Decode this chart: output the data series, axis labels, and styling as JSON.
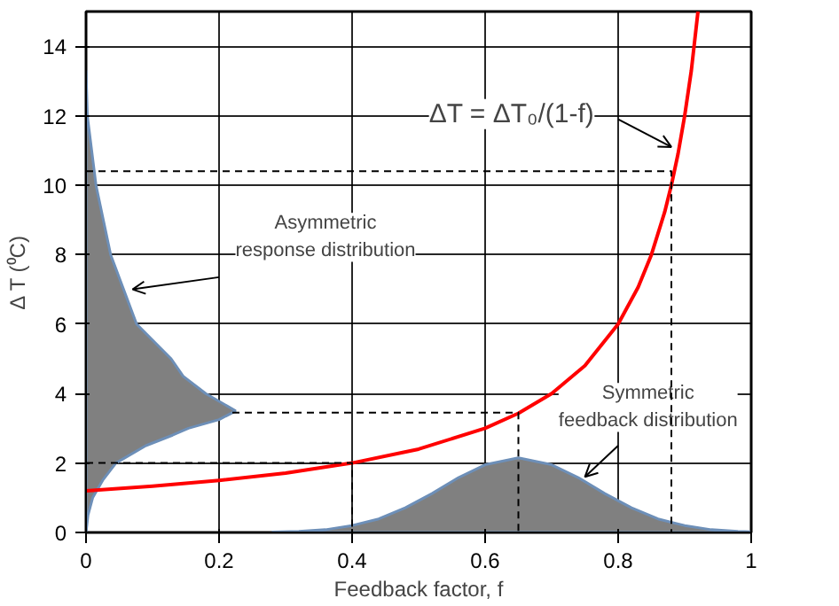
{
  "chart_data": {
    "type": "line",
    "xlabel": "Feedback factor, f",
    "ylabel": "Δ T (⁰C)",
    "xlim": [
      0,
      1
    ],
    "ylim": [
      0,
      15
    ],
    "xticks": [
      0,
      0.2,
      0.4,
      0.6,
      0.8,
      1
    ],
    "yticks": [
      0,
      2,
      4,
      6,
      8,
      10,
      12,
      14
    ],
    "grid": true,
    "series": [
      {
        "color": "#ff0000",
        "x": [
          0,
          0.1,
          0.2,
          0.3,
          0.4,
          0.5,
          0.6,
          0.65,
          0.7,
          0.75,
          0.8,
          0.83,
          0.85,
          0.87,
          0.88,
          0.89,
          0.9,
          0.91,
          0.92
        ],
        "values": [
          1.2,
          1.33,
          1.5,
          1.71,
          2,
          2.4,
          3,
          3.43,
          4,
          4.8,
          6,
          7.06,
          8,
          9.23,
          10,
          10.9,
          12,
          13.3,
          15
        ]
      },
      {
        "type": "area",
        "color": "#808080",
        "x": [
          0.28,
          0.32,
          0.36,
          0.4,
          0.44,
          0.48,
          0.52,
          0.56,
          0.6,
          0.65,
          0.7,
          0.74,
          0.78,
          0.82,
          0.86,
          0.9,
          0.94,
          0.98,
          1
        ],
        "values": [
          0.01,
          0.03,
          0.08,
          0.2,
          0.39,
          0.71,
          1.12,
          1.58,
          1.95,
          2.15,
          1.95,
          1.58,
          1.12,
          0.71,
          0.39,
          0.2,
          0.08,
          0.03,
          0.02
        ]
      },
      {
        "type": "area",
        "color": "#808080",
        "x": [
          0,
          0.003,
          0.01,
          0.025,
          0.045,
          0.09,
          0.13,
          0.154,
          0.2,
          0.225,
          0.18,
          0.146,
          0.128,
          0.076,
          0.037,
          0.015,
          0.002,
          0
        ],
        "values": [
          0,
          0.5,
          1,
          1.5,
          2,
          2.5,
          2.8,
          3,
          3.25,
          3.5,
          4,
          4.5,
          5,
          6,
          8,
          10,
          12,
          13.3
        ]
      },
      {
        "type": "line",
        "line_style": "dashed",
        "color": "#000000",
        "x": [
          0,
          0.4,
          0.4
        ],
        "values": [
          2,
          2,
          0
        ]
      },
      {
        "type": "line",
        "line_style": "dashed",
        "color": "#000000",
        "x": [
          0.22,
          0.65,
          0.65
        ],
        "values": [
          3.45,
          3.45,
          0
        ]
      },
      {
        "type": "line",
        "line_style": "dashed",
        "color": "#000000",
        "x": [
          0,
          0.88,
          0.88
        ],
        "values": [
          10.4,
          10.4,
          0
        ]
      }
    ],
    "annotations": [
      {
        "text": "ΔT = ΔT₀/(1-f)",
        "x": 0.88,
        "y": 11.1
      },
      {
        "text": "Asymmetric\nresponse distribution",
        "x": 0.07,
        "y": 7.0
      },
      {
        "text": "Symmetric\nfeedback distribution",
        "x": 0.75,
        "y": 1.6
      }
    ]
  }
}
